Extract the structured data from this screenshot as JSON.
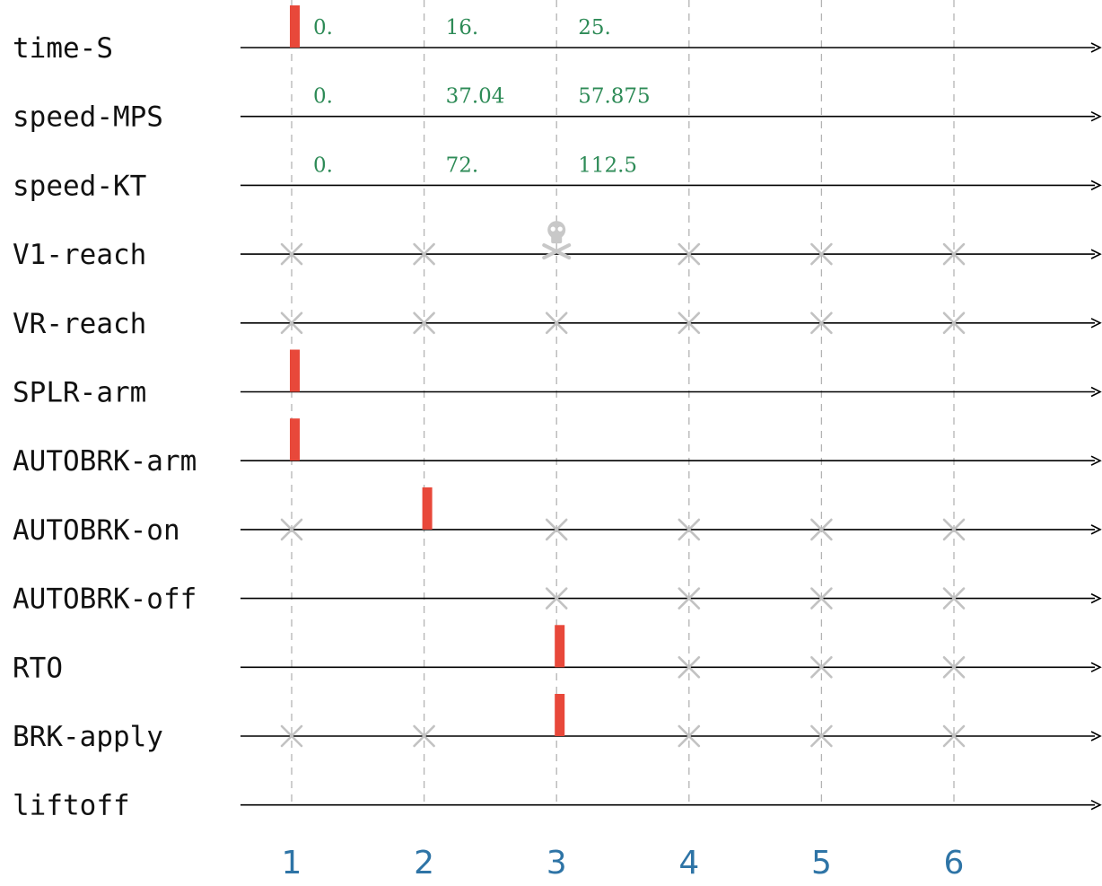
{
  "colors": {
    "pulse": "#e8483a",
    "value_text": "#2e8b57",
    "step_text": "#2e74a6",
    "cross": "#c2c2c2",
    "gridline": "#b3b3b3",
    "skull": "#c8c8c8"
  },
  "steps": [
    "1",
    "2",
    "3",
    "4",
    "5",
    "6"
  ],
  "signals": [
    {
      "name": "time-S",
      "pulses": [
        1
      ],
      "values": [
        {
          "step": 1,
          "text": "0."
        },
        {
          "step": 2,
          "text": "16."
        },
        {
          "step": 3,
          "text": "25."
        }
      ]
    },
    {
      "name": "speed-MPS",
      "pulses": [],
      "values": [
        {
          "step": 1,
          "text": "0."
        },
        {
          "step": 2,
          "text": "37.04"
        },
        {
          "step": 3,
          "text": "57.875"
        }
      ]
    },
    {
      "name": "speed-KT",
      "pulses": [],
      "values": [
        {
          "step": 1,
          "text": "0."
        },
        {
          "step": 2,
          "text": "72."
        },
        {
          "step": 3,
          "text": "112.5"
        }
      ]
    },
    {
      "name": "V1-reach",
      "crosses": [
        1,
        2,
        4,
        5,
        6
      ],
      "skull": [
        3
      ]
    },
    {
      "name": "VR-reach",
      "crosses": [
        1,
        2,
        3,
        4,
        5,
        6
      ]
    },
    {
      "name": "SPLR-arm",
      "pulses": [
        1
      ]
    },
    {
      "name": "AUTOBRK-arm",
      "pulses": [
        1
      ]
    },
    {
      "name": "AUTOBRK-on",
      "pulses": [
        2
      ],
      "crosses": [
        1,
        3,
        4,
        5,
        6
      ]
    },
    {
      "name": "AUTOBRK-off",
      "crosses": [
        3,
        4,
        5,
        6
      ]
    },
    {
      "name": "RTO",
      "pulses": [
        3
      ],
      "crosses": [
        4,
        5,
        6
      ]
    },
    {
      "name": "BRK-apply",
      "pulses": [
        3
      ],
      "crosses": [
        1,
        2,
        4,
        5,
        6
      ]
    },
    {
      "name": "liftoff"
    }
  ],
  "icons": {
    "skull": "skull-crossbones-icon",
    "cross": "cross-mark-icon",
    "arrow": "arrowhead-icon"
  }
}
